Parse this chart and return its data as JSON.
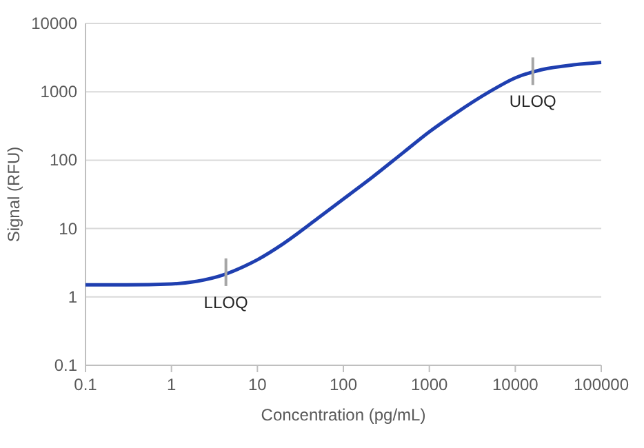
{
  "chart_data": {
    "type": "line",
    "xlabel": "Concentration (pg/mL)",
    "ylabel": "Signal (RFU)",
    "log": "xy",
    "grid": "y",
    "marker": "none",
    "line_style": "solid",
    "xlim": [
      0.1,
      100000
    ],
    "xticks": [
      0.1,
      1,
      10,
      100,
      1000,
      10000,
      100000
    ],
    "ylim": [
      0.1,
      10000
    ],
    "yticks": [
      0.1,
      1,
      10,
      100,
      1000,
      10000
    ],
    "series": [
      {
        "color": "#1f3fb0",
        "x": [
          0.1,
          0.3,
          1,
          2,
          4,
          7,
          10,
          20,
          50,
          100,
          200,
          500,
          1000,
          2000,
          5000,
          10000,
          20000,
          50000,
          100000
        ],
        "values": [
          1.5,
          1.5,
          1.55,
          1.7,
          2.1,
          2.8,
          3.5,
          6,
          14,
          27,
          52,
          130,
          260,
          480,
          1000,
          1600,
          2100,
          2500,
          2700
        ]
      }
    ],
    "annotations": [
      {
        "text": "LLOQ",
        "x": 4.3,
        "y": 2.3
      },
      {
        "text": "ULOQ",
        "x": 16000,
        "y": 2000
      }
    ]
  }
}
